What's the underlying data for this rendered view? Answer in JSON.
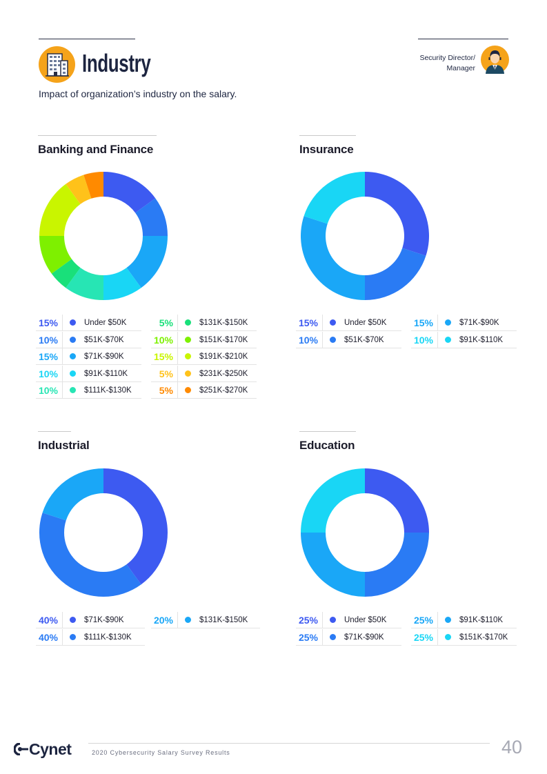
{
  "header": {
    "title": "Industry",
    "subtitle": "Impact of organization’s industry on the salary.",
    "role_line1": "Security Director/",
    "role_line2": "Manager",
    "icon": "office-building-icon",
    "avatar_icon": "security-director-avatar-icon",
    "accent_color": "#f5a31a"
  },
  "sections": [
    {
      "title": "Banking and Finance",
      "chart_data": {
        "type": "pie",
        "donut": true,
        "categories": [
          "Under $50K",
          "$51K-$70K",
          "$71K-$90K",
          "$91K-$110K",
          "$111K-$130K",
          "$131K-$150K",
          "$151K-$170K",
          "$191K-$210K",
          "$231K-$250K",
          "$251K-$270K"
        ],
        "values": [
          15,
          10,
          15,
          10,
          10,
          5,
          10,
          15,
          5,
          5
        ],
        "labels": [
          "15%",
          "10%",
          "15%",
          "10%",
          "10%",
          "5%",
          "10%",
          "15%",
          "5%",
          "5%"
        ],
        "colors": [
          "#3d5af1",
          "#2a7bf4",
          "#1aa7f7",
          "#19d6f5",
          "#27e5b4",
          "#19e07a",
          "#7ef000",
          "#c9f500",
          "#ffc21a",
          "#ff8a00"
        ]
      }
    },
    {
      "title": "Insurance",
      "chart_data": {
        "type": "pie",
        "donut": true,
        "categories": [
          "Under $50K",
          "$51K-$70K",
          "$71K-$90K",
          "$91K-$110K"
        ],
        "values": [
          15,
          10,
          15,
          10
        ],
        "labels": [
          "15%",
          "10%",
          "15%",
          "10%"
        ],
        "colors": [
          "#3d5af1",
          "#2a7bf4",
          "#1aa7f7",
          "#19d6f5"
        ]
      }
    },
    {
      "title": "Industrial",
      "chart_data": {
        "type": "pie",
        "donut": true,
        "categories": [
          "$71K-$90K",
          "$111K-$130K",
          "$131K-$150K"
        ],
        "values": [
          40,
          40,
          20
        ],
        "labels": [
          "40%",
          "40%",
          "20%"
        ],
        "colors": [
          "#3d5af1",
          "#2a7bf4",
          "#1aa7f7"
        ]
      }
    },
    {
      "title": "Education",
      "chart_data": {
        "type": "pie",
        "donut": true,
        "categories": [
          "Under $50K",
          "$71K-$90K",
          "$91K-$110K",
          "$151K-$170K"
        ],
        "values": [
          25,
          25,
          25,
          25
        ],
        "labels": [
          "25%",
          "25%",
          "25%",
          "25%"
        ],
        "colors": [
          "#3d5af1",
          "#2a7bf4",
          "#1aa7f7",
          "#19d6f5"
        ]
      }
    }
  ],
  "footer": {
    "brand": "Cynet",
    "brand_icon": "cynet-logo-icon",
    "caption": "2020 Cybersecurity Salary Survey Results",
    "page_number": "40"
  }
}
